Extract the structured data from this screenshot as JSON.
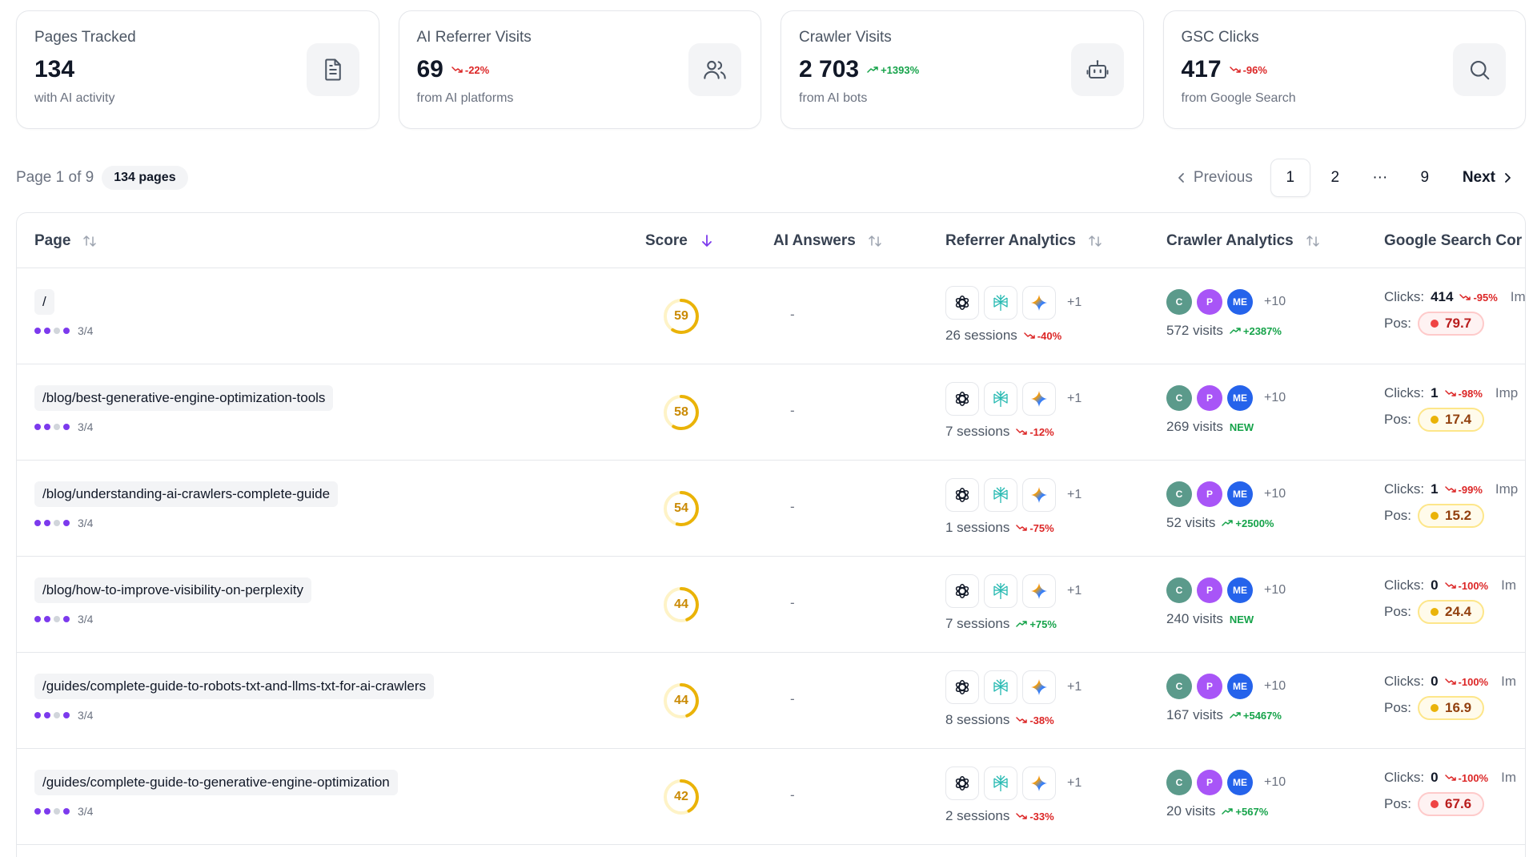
{
  "cards": [
    {
      "title": "Pages Tracked",
      "value": "134",
      "delta": "",
      "trend": "",
      "sub": "with AI activity",
      "icon": "document-icon"
    },
    {
      "title": "AI Referrer Visits",
      "value": "69",
      "delta": "-22%",
      "trend": "down",
      "sub": "from AI platforms",
      "icon": "users-icon"
    },
    {
      "title": "Crawler Visits",
      "value": "2 703",
      "delta": "+1393%",
      "trend": "up",
      "sub": "from AI bots",
      "icon": "bot-icon"
    },
    {
      "title": "GSC Clicks",
      "value": "417",
      "delta": "-96%",
      "trend": "down",
      "sub": "from Google Search",
      "icon": "search-icon"
    }
  ],
  "pager": {
    "info": "Page 1 of 9",
    "count": "134 pages",
    "prev": "Previous",
    "next": "Next",
    "pages": [
      "1",
      "2",
      "9"
    ],
    "ellipsis": "···"
  },
  "columns": {
    "page": "Page",
    "score": "Score",
    "ai_answers": "AI Answers",
    "referrer": "Referrer Analytics",
    "crawler": "Crawler Analytics",
    "gsc": "Google Search Cor"
  },
  "crawler_avatars": [
    {
      "label": "C",
      "color": "#5b9a8b"
    },
    {
      "label": "P",
      "color": "#a855f7"
    },
    {
      "label": "ME",
      "color": "#2563eb"
    }
  ],
  "labels": {
    "more_refs": "+1",
    "more_crawlers": "+10",
    "clicks": "Clicks:",
    "pos": "Pos:",
    "imp": "Imp",
    "dash": "-"
  },
  "rows": [
    {
      "path": "/",
      "coverage": "3/4",
      "score": 59,
      "ai_answers": "-",
      "sessions": "26 sessions",
      "sessions_delta": "-40%",
      "sessions_trend": "down",
      "visits": "572 visits",
      "visits_delta": "+2387%",
      "visits_trend": "up",
      "clicks": "414",
      "clicks_delta": "-95%",
      "pos": "79.7",
      "pos_color": "red",
      "imp_label": "Im"
    },
    {
      "path": "/blog/best-generative-engine-optimization-tools",
      "coverage": "3/4",
      "score": 58,
      "ai_answers": "-",
      "sessions": "7 sessions",
      "sessions_delta": "-12%",
      "sessions_trend": "down",
      "visits": "269 visits",
      "visits_delta": "NEW",
      "visits_trend": "new",
      "clicks": "1",
      "clicks_delta": "-98%",
      "pos": "17.4",
      "pos_color": "yellow",
      "imp_label": "Imp"
    },
    {
      "path": "/blog/understanding-ai-crawlers-complete-guide",
      "coverage": "3/4",
      "score": 54,
      "ai_answers": "-",
      "sessions": "1 sessions",
      "sessions_delta": "-75%",
      "sessions_trend": "down",
      "visits": "52 visits",
      "visits_delta": "+2500%",
      "visits_trend": "up",
      "clicks": "1",
      "clicks_delta": "-99%",
      "pos": "15.2",
      "pos_color": "yellow",
      "imp_label": "Imp"
    },
    {
      "path": "/blog/how-to-improve-visibility-on-perplexity",
      "coverage": "3/4",
      "score": 44,
      "ai_answers": "-",
      "sessions": "7 sessions",
      "sessions_delta": "+75%",
      "sessions_trend": "up",
      "visits": "240 visits",
      "visits_delta": "NEW",
      "visits_trend": "new",
      "clicks": "0",
      "clicks_delta": "-100%",
      "pos": "24.4",
      "pos_color": "yellow",
      "imp_label": "Im"
    },
    {
      "path": "/guides/complete-guide-to-robots-txt-and-llms-txt-for-ai-crawlers",
      "coverage": "3/4",
      "score": 44,
      "ai_answers": "-",
      "sessions": "8 sessions",
      "sessions_delta": "-38%",
      "sessions_trend": "down",
      "visits": "167 visits",
      "visits_delta": "+5467%",
      "visits_trend": "up",
      "clicks": "0",
      "clicks_delta": "-100%",
      "pos": "16.9",
      "pos_color": "yellow",
      "imp_label": "Im"
    },
    {
      "path": "/guides/complete-guide-to-generative-engine-optimization",
      "coverage": "3/4",
      "score": 42,
      "ai_answers": "-",
      "sessions": "2 sessions",
      "sessions_delta": "-33%",
      "sessions_trend": "down",
      "visits": "20 visits",
      "visits_delta": "+567%",
      "visits_trend": "up",
      "clicks": "0",
      "clicks_delta": "-100%",
      "pos": "67.6",
      "pos_color": "red",
      "imp_label": "Im"
    }
  ]
}
